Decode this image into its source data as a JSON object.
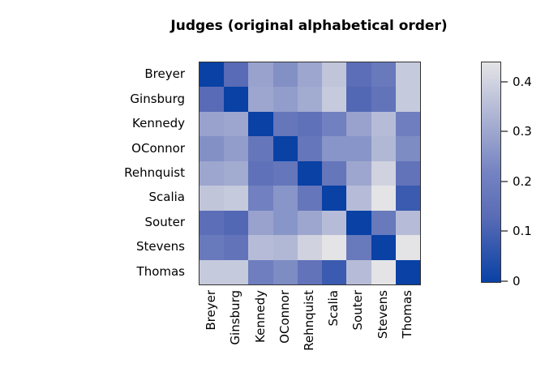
{
  "chart_data": {
    "type": "heatmap",
    "title": "Judges (original alphabetical order)",
    "labels": [
      "Breyer",
      "Ginsburg",
      "Kennedy",
      "OConnor",
      "Rehnquist",
      "Scalia",
      "Souter",
      "Stevens",
      "Thomas"
    ],
    "matrix": [
      [
        0.0,
        0.13,
        0.29,
        0.25,
        0.3,
        0.37,
        0.14,
        0.18,
        0.38
      ],
      [
        0.13,
        0.0,
        0.3,
        0.28,
        0.31,
        0.38,
        0.12,
        0.16,
        0.38
      ],
      [
        0.29,
        0.3,
        0.0,
        0.17,
        0.15,
        0.21,
        0.29,
        0.35,
        0.2
      ],
      [
        0.25,
        0.28,
        0.17,
        0.0,
        0.17,
        0.26,
        0.26,
        0.34,
        0.24
      ],
      [
        0.3,
        0.31,
        0.15,
        0.17,
        0.0,
        0.17,
        0.3,
        0.4,
        0.16
      ],
      [
        0.37,
        0.38,
        0.21,
        0.26,
        0.17,
        0.0,
        0.35,
        0.44,
        0.08
      ],
      [
        0.14,
        0.12,
        0.29,
        0.26,
        0.3,
        0.35,
        0.0,
        0.18,
        0.35
      ],
      [
        0.18,
        0.16,
        0.35,
        0.34,
        0.4,
        0.44,
        0.18,
        0.0,
        0.44
      ],
      [
        0.38,
        0.38,
        0.2,
        0.24,
        0.16,
        0.08,
        0.35,
        0.44,
        0.0
      ]
    ],
    "value_range": [
      0,
      0.44
    ],
    "colorbar": {
      "position": "right",
      "ticks": [
        0,
        0.1,
        0.2,
        0.3,
        0.4
      ],
      "tick_labels": [
        "0",
        "0.1",
        "0.2",
        "0.3",
        "0.4"
      ]
    },
    "colors": {
      "scale_low": "#0941A5",
      "scale_mid30": "#5A6CB6",
      "scale_mid50": "#7483C1",
      "scale_high": "#E4E4E6"
    }
  }
}
